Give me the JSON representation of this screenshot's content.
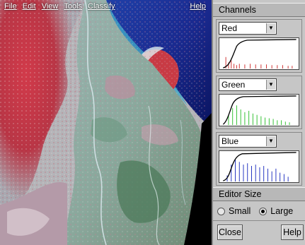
{
  "menubar": {
    "file": "File",
    "edit": "Edit",
    "view": "View",
    "tools": "Tools",
    "classify": "Classify",
    "help": "Help"
  },
  "channels_panel": {
    "title": "Channels",
    "channels": [
      {
        "label": "Red",
        "color": "#d03030"
      },
      {
        "label": "Green",
        "color": "#30c030"
      },
      {
        "label": "Blue",
        "color": "#2030c0"
      }
    ]
  },
  "editor_size": {
    "title": "Editor Size",
    "options": [
      {
        "label": "Small",
        "selected": false
      },
      {
        "label": "Large",
        "selected": true
      }
    ]
  },
  "buttons": {
    "close": "Close",
    "help": "Help"
  },
  "image": {
    "subject": "false-color satellite image"
  }
}
